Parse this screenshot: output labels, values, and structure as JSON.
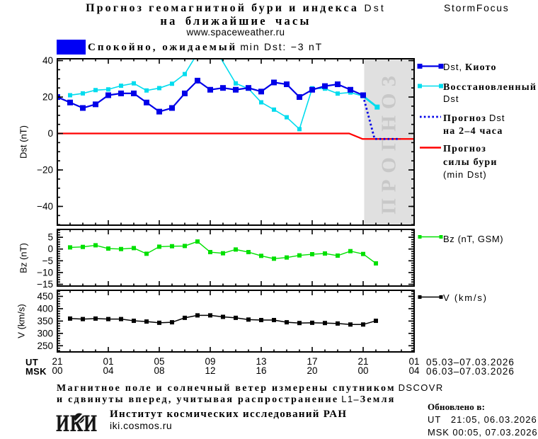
{
  "header": {
    "title_ru": "Прогноз геомагнитной бури и индекса",
    "title_latin": "Dst",
    "subtitle": "на ближайшие часы",
    "site": "www.spaceweather.ru",
    "brand": "StormFocus"
  },
  "status": {
    "swatch_color": "#0000f5",
    "text_ru": "Спокойно, ожидаемый",
    "text_latin": "min Dst: −3 nT"
  },
  "legend_main": {
    "kyoto_latin": "Dst,",
    "kyoto_ru": "Киото",
    "restored_ru": "Восстановленный",
    "restored_latin": "Dst",
    "forecast_ru": "Прогноз",
    "forecast_latin": "Dst",
    "forecast_ru2": "на 2–4 часа",
    "storm_ru1": "Прогноз",
    "storm_ru2": "силы бури",
    "storm_latin": "(min Dst)",
    "bz": "Bz (nT, GSM)",
    "v": "V (km/s)"
  },
  "xaxis": {
    "ut_label": "UT",
    "msk_label": "MSK",
    "ticks_ut": [
      "21",
      "01",
      "05",
      "09",
      "13",
      "17",
      "21",
      "01"
    ],
    "ticks_msk": [
      "00",
      "04",
      "08",
      "12",
      "16",
      "20",
      "00",
      "04"
    ],
    "date_ut": "05.03–07.03.2026",
    "date_msk": "06.03–07.03.2026"
  },
  "footer": {
    "line1_ru": "Магнитное поле и солнечный ветер измерены спутником",
    "line1_latin": "DSCOVR",
    "line2_ru": "и сдвинуты вперед, учитывая распространение",
    "line2_latin": "L1",
    "line2_ru2": "–Земля",
    "logo_text": "ИКИ",
    "institute": "Институт космических исследований РАН",
    "institute_url": "iki.cosmos.ru",
    "updated_label": "Обновлено в:",
    "updated_ut": "UT   21:05, 06.03.2026",
    "updated_msk": "MSK 00:05, 07.03.2026"
  },
  "chart_data": [
    {
      "id": "dst",
      "type": "line",
      "ylabel": "Dst (nT)",
      "xlim_hours": [
        0,
        28
      ],
      "ylim": [
        -50.3,
        41
      ],
      "yticks": [
        40,
        20,
        0,
        -20,
        -40
      ],
      "ytick_labels": [
        "40",
        "20",
        "0",
        "−20",
        "−40"
      ],
      "yminor_step": 5,
      "forecast_region": {
        "x0_hours": 24.08,
        "x1_hours": 28,
        "label": "ПРОГНОЗ",
        "bg": "#e0e0e0",
        "text_color": "#c8c8c8"
      },
      "series": [
        {
          "name": "Прогноз силы бури (min Dst)",
          "color": "#ff0000",
          "width": 2.2,
          "marker": 0,
          "points": [
            [
              0,
              0
            ],
            [
              22.9,
              0
            ],
            [
              23.95,
              -3
            ],
            [
              28,
              -3
            ]
          ]
        },
        {
          "name": "Восстановленный Dst",
          "color": "#00dcee",
          "width": 1.6,
          "marker": 6,
          "points": [
            [
              1,
              21
            ],
            [
              2,
              22
            ],
            [
              3,
              23.8
            ],
            [
              4,
              24.2
            ],
            [
              5,
              26.2
            ],
            [
              6,
              27.5
            ],
            [
              7,
              23.6
            ],
            [
              8,
              24.9
            ],
            [
              9,
              27.3
            ],
            [
              10,
              32.6
            ],
            [
              11,
              44
            ],
            [
              12,
              51
            ],
            [
              14,
              27.5
            ],
            [
              15,
              24.6
            ],
            [
              16,
              17.1
            ],
            [
              17,
              13.1
            ],
            [
              18,
              8.9
            ],
            [
              19,
              2.4
            ],
            [
              20,
              24.8
            ],
            [
              21,
              24.6
            ],
            [
              22,
              21.9
            ],
            [
              23,
              22.5
            ],
            [
              24,
              20.5
            ]
          ]
        },
        {
          "name": "Восстановленный Dst (прогноз)",
          "color": "#00dcee",
          "width": 2.8,
          "marker": 7,
          "marker_last_only": true,
          "points": [
            [
              24,
              20.5
            ],
            [
              25.1,
              14.5
            ]
          ]
        },
        {
          "name": "Прогноз Dst на 2–4 часа",
          "color": "#0000e8",
          "width": 2.8,
          "dash": [
            2.6,
            3.2
          ],
          "marker": 0,
          "points": [
            [
              24,
              20.6
            ],
            [
              24.9,
              -3
            ],
            [
              26.9,
              -3
            ]
          ]
        },
        {
          "name": "Dst, Киото",
          "color": "#0000e8",
          "width": 2.2,
          "marker": 8,
          "points": [
            [
              0,
              20
            ],
            [
              1,
              17
            ],
            [
              2,
              14
            ],
            [
              3,
              16
            ],
            [
              4,
              21
            ],
            [
              5,
              22
            ],
            [
              6,
              22
            ],
            [
              7,
              17
            ],
            [
              8,
              12
            ],
            [
              9,
              14
            ],
            [
              10,
              22
            ],
            [
              11,
              29
            ],
            [
              12,
              24
            ],
            [
              13,
              25
            ],
            [
              14,
              24
            ],
            [
              15,
              25
            ],
            [
              16,
              23
            ],
            [
              17,
              28
            ],
            [
              18,
              27
            ],
            [
              19,
              20
            ],
            [
              20,
              24
            ],
            [
              21,
              26
            ],
            [
              22,
              27
            ],
            [
              23,
              24
            ],
            [
              24,
              21
            ]
          ]
        }
      ]
    },
    {
      "id": "bz",
      "type": "line",
      "ylabel": "Bz (nT)",
      "xlim_hours": [
        0,
        28
      ],
      "ylim": [
        -15.75,
        8.35
      ],
      "yticks": [
        5,
        0,
        -5,
        -10,
        -15
      ],
      "ytick_labels": [
        "5",
        "0",
        "−5",
        "−10",
        "−15"
      ],
      "yminor_step": 1,
      "series": [
        {
          "name": "Bz (nT, GSM)",
          "color": "#00e000",
          "width": 1.4,
          "marker": 6,
          "points": [
            [
              1,
              0.7
            ],
            [
              2,
              0.9
            ],
            [
              3,
              1.6
            ],
            [
              4,
              0.2
            ],
            [
              5,
              0
            ],
            [
              6,
              0.4
            ],
            [
              7,
              -2
            ],
            [
              8,
              1
            ],
            [
              9,
              1.2
            ],
            [
              10,
              1.3
            ],
            [
              11,
              3.2
            ],
            [
              12,
              -1.3
            ],
            [
              13,
              -1.8
            ],
            [
              14,
              -0.2
            ],
            [
              15,
              -1.3
            ],
            [
              16,
              -2.9
            ],
            [
              17,
              -4.1
            ],
            [
              18,
              -3.6
            ],
            [
              19,
              -2.7
            ],
            [
              20,
              -2.2
            ],
            [
              21,
              -1.9
            ],
            [
              22,
              -2.8
            ],
            [
              23,
              -0.9
            ],
            [
              24,
              -2.1
            ],
            [
              25,
              -6.1
            ]
          ]
        }
      ]
    },
    {
      "id": "v",
      "type": "line",
      "ylabel": "V (km/s)",
      "xlim_hours": [
        0,
        28
      ],
      "ylim": [
        225,
        474.5
      ],
      "yticks": [
        450,
        400,
        350,
        300,
        250
      ],
      "ytick_labels": [
        "450",
        "400",
        "350",
        "300",
        "250"
      ],
      "yminor_step": 10,
      "series": [
        {
          "name": "V (km/s)",
          "color": "#000000",
          "width": 1.5,
          "marker": 6,
          "points": [
            [
              1,
              360
            ],
            [
              2,
              358
            ],
            [
              3,
              360
            ],
            [
              4,
              358
            ],
            [
              5,
              358
            ],
            [
              6,
              351
            ],
            [
              7,
              348
            ],
            [
              8,
              343
            ],
            [
              9,
              345
            ],
            [
              10,
              363
            ],
            [
              11,
              373
            ],
            [
              12,
              373
            ],
            [
              13,
              367
            ],
            [
              14,
              363
            ],
            [
              15,
              356
            ],
            [
              16,
              354
            ],
            [
              17,
              354
            ],
            [
              18,
              345
            ],
            [
              19,
              342
            ],
            [
              20,
              343
            ],
            [
              21,
              342
            ],
            [
              22,
              340
            ],
            [
              23,
              336
            ],
            [
              24,
              336
            ],
            [
              25,
              351
            ]
          ]
        }
      ]
    }
  ]
}
